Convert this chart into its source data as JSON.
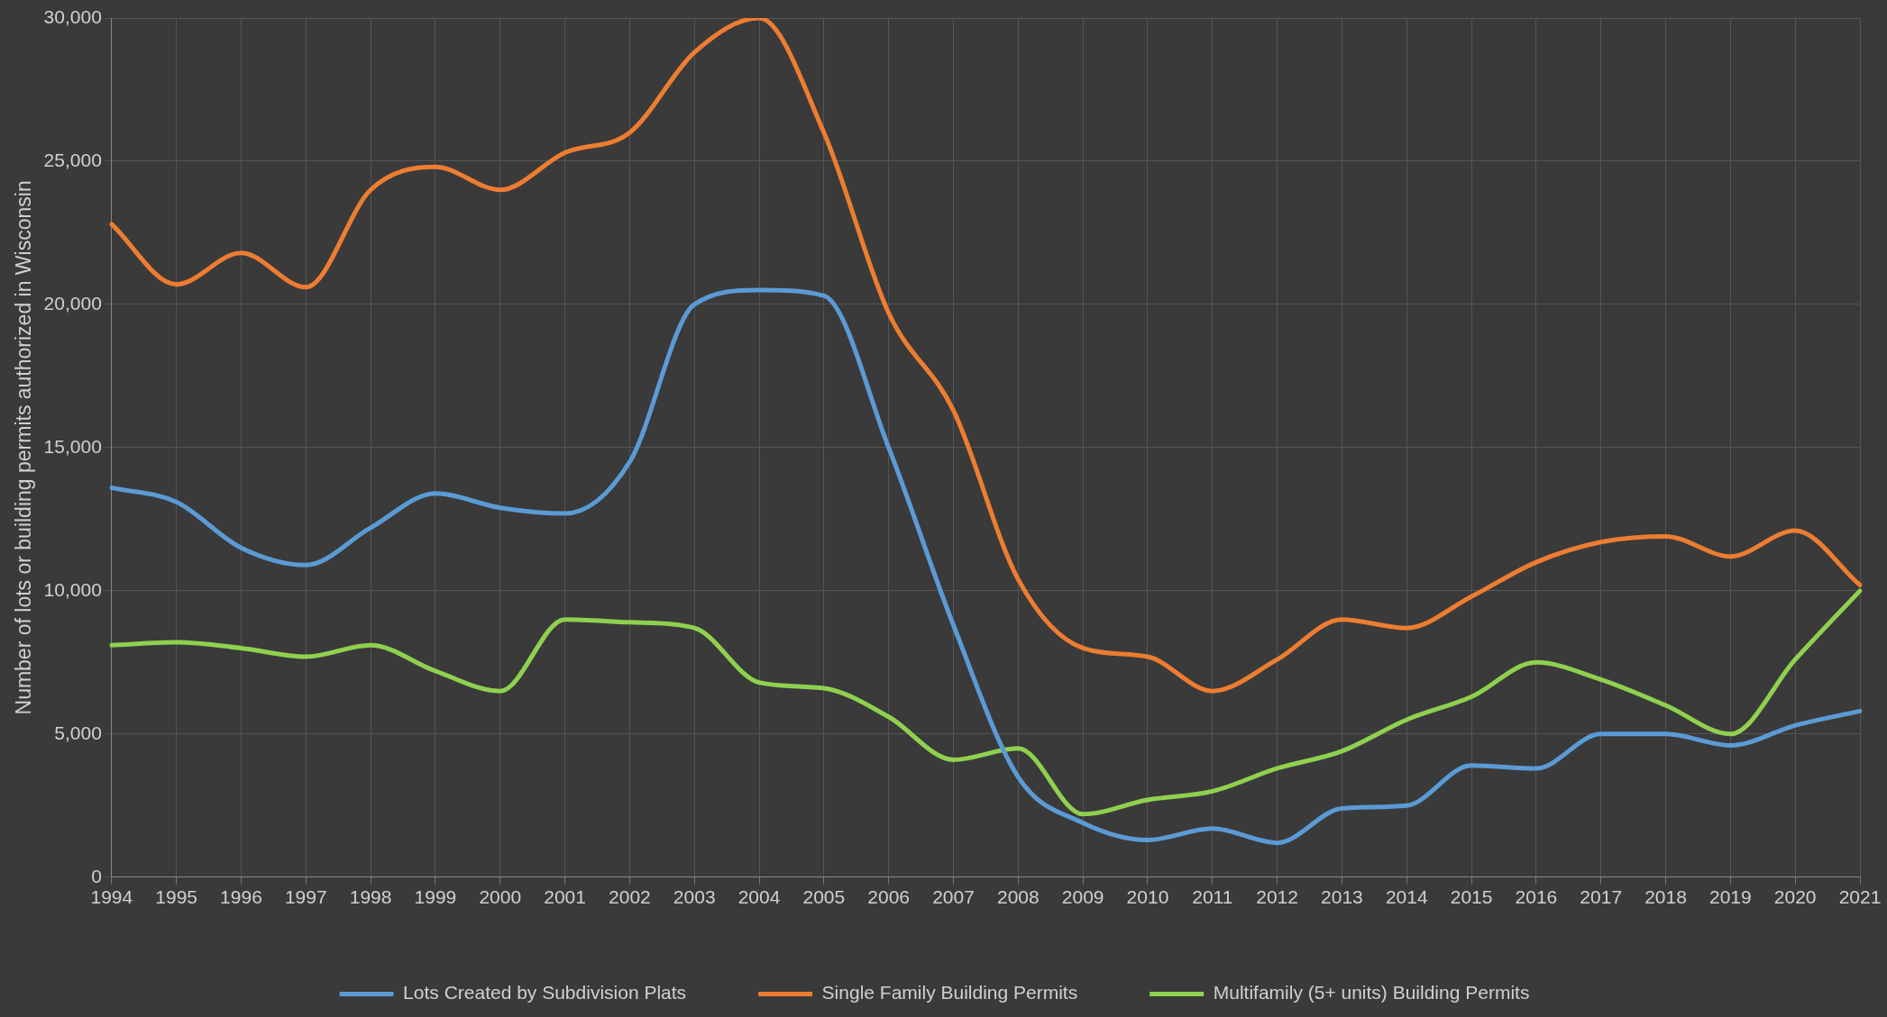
{
  "chart_data": {
    "type": "line",
    "ylabel": "Number of lots or building permits authorized in Wisconsin",
    "categories": [
      "1994",
      "1995",
      "1996",
      "1997",
      "1998",
      "1999",
      "2000",
      "2001",
      "2002",
      "2003",
      "2004",
      "2005",
      "2006",
      "2007",
      "2008",
      "2009",
      "2010",
      "2011",
      "2012",
      "2013",
      "2014",
      "2015",
      "2016",
      "2017",
      "2018",
      "2019",
      "2020",
      "2021"
    ],
    "series": [
      {
        "name": "Lots Created by Subdivision Plats",
        "color": "#5b9bd5",
        "values": [
          13600,
          13100,
          11500,
          10900,
          12200,
          13400,
          12900,
          12700,
          14500,
          20000,
          20500,
          20300,
          15000,
          8800,
          3500,
          1900,
          1300,
          1700,
          1200,
          2400,
          2500,
          3900,
          3800,
          5000,
          5000,
          4600,
          5300,
          5800
        ]
      },
      {
        "name": "Single Family Building Permits",
        "color": "#ed7d31",
        "values": [
          22800,
          20700,
          21800,
          20600,
          24000,
          24800,
          24000,
          25300,
          26000,
          28800,
          30000,
          26000,
          19700,
          16300,
          10400,
          8000,
          7700,
          6500,
          7600,
          9000,
          8700,
          9800,
          11000,
          11700,
          11900,
          11200,
          12100,
          10200
        ]
      },
      {
        "name": "Multifamily (5+ units) Building Permits",
        "color": "#8fd14f",
        "values": [
          8100,
          8200,
          8000,
          7700,
          8100,
          7200,
          6500,
          9000,
          8900,
          8700,
          6800,
          6600,
          5600,
          4100,
          4500,
          2200,
          2700,
          3000,
          3800,
          4400,
          5500,
          6300,
          7500,
          6900,
          6000,
          5000,
          7600,
          10000
        ]
      }
    ],
    "ylim": [
      0,
      30000
    ],
    "yticks": [
      0,
      {
        "value": 5000,
        "label": "5,000"
      },
      {
        "value": 10000,
        "label": "10,000"
      },
      {
        "value": 15000,
        "label": "15,000"
      },
      {
        "value": 20000,
        "label": "20,000"
      },
      {
        "value": 25000,
        "label": "25,000"
      },
      {
        "value": 30000,
        "label": "30,000"
      }
    ],
    "grid": true,
    "legend": "bottom",
    "marker": "none",
    "line_style": "solid"
  }
}
